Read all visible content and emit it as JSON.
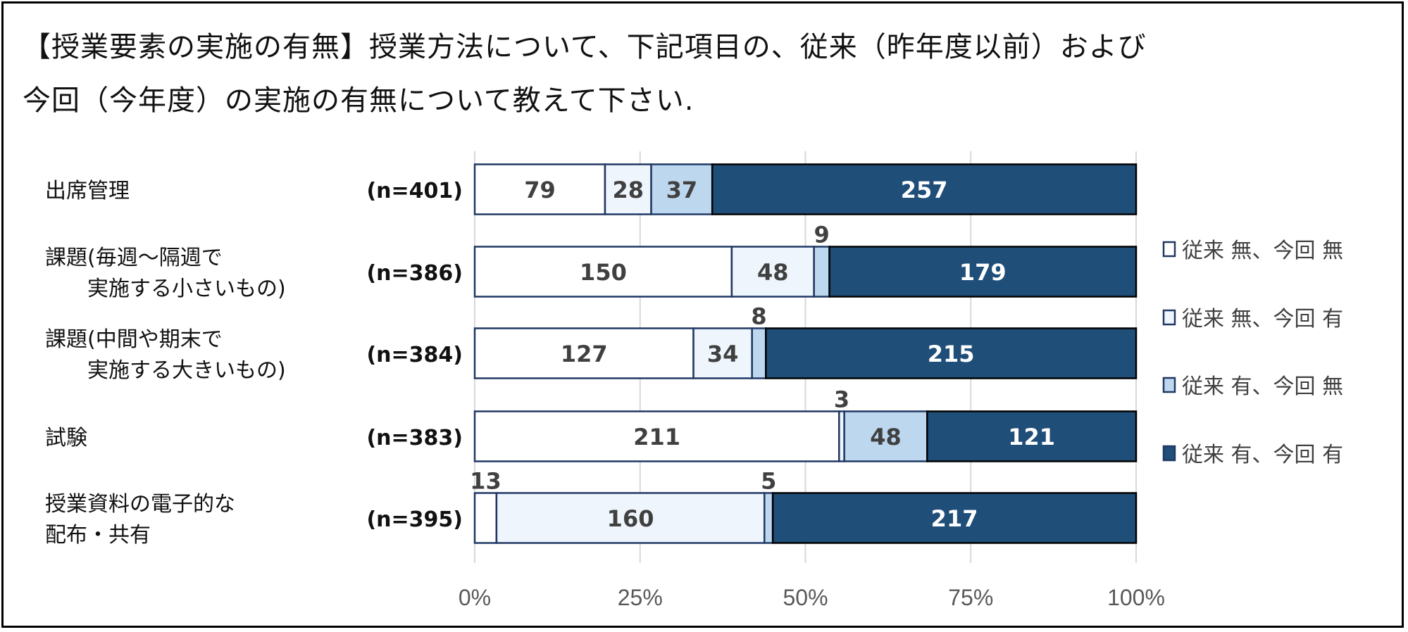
{
  "chart_data": {
    "type": "bar",
    "orientation": "horizontal",
    "stacked": "percent",
    "title_lines": [
      "【授業要素の実施の有無】授業方法について、下記項目の、従来（昨年度以前）および",
      "今回（今年度）の実施の有無について教えて下さい."
    ],
    "categories": [
      {
        "label_lines": [
          "出席管理"
        ],
        "n": "(n=401)"
      },
      {
        "label_lines": [
          "課題(毎週～隔週で",
          "　　実施する小さいもの)"
        ],
        "n": "(n=386)"
      },
      {
        "label_lines": [
          "課題(中間や期末で",
          "　　実施する大きいもの)"
        ],
        "n": "(n=384)"
      },
      {
        "label_lines": [
          "試験"
        ],
        "n": "(n=383)"
      },
      {
        "label_lines": [
          "授業資料の電子的な",
          "配布・共有"
        ],
        "n": "(n=395)"
      }
    ],
    "series": [
      {
        "name": "従来 無、今回 無",
        "color": "#ffffff",
        "values": [
          79,
          150,
          127,
          211,
          13
        ]
      },
      {
        "name": "従来 無、今回 有",
        "color": "#eef5fc",
        "values": [
          28,
          48,
          34,
          3,
          160
        ]
      },
      {
        "name": "従来 有、今回 無",
        "color": "#bdd7ee",
        "values": [
          37,
          9,
          8,
          48,
          5
        ]
      },
      {
        "name": "従来 有、今回 有",
        "color": "#1f4e79",
        "values": [
          257,
          179,
          215,
          121,
          217
        ]
      }
    ],
    "xlim": [
      0,
      100
    ],
    "xticks": [
      "0%",
      "25%",
      "50%",
      "75%",
      "100%"
    ],
    "grid": true,
    "legend_position": "right",
    "border_color": "#203864"
  }
}
